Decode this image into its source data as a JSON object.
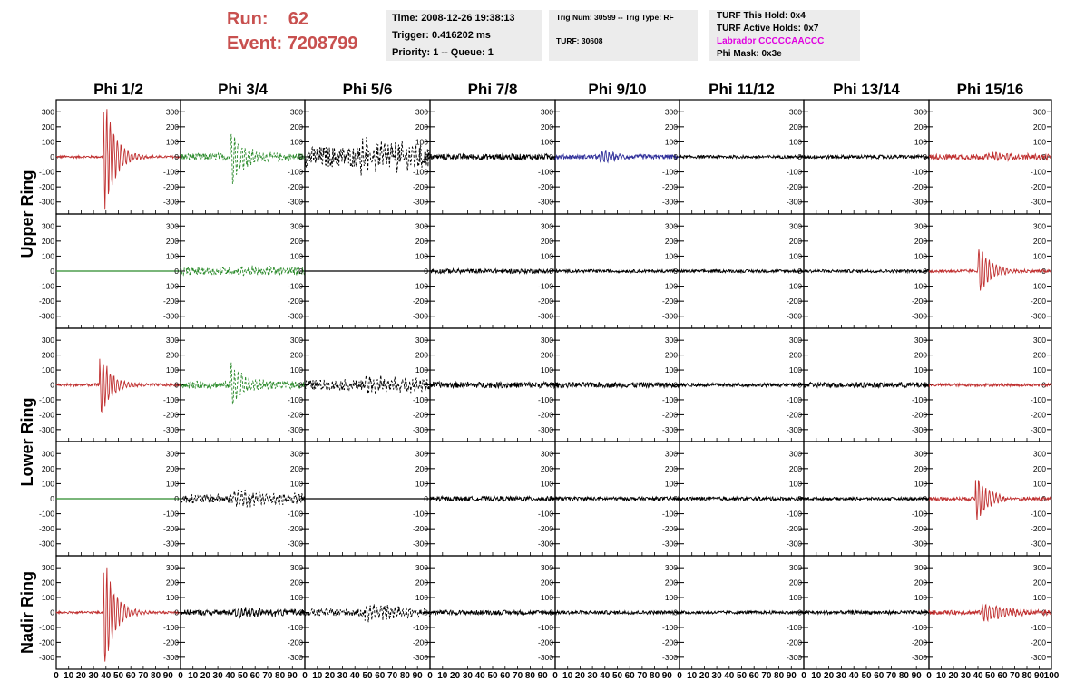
{
  "header": {
    "run_label": "Run:",
    "run_value": "62",
    "event_label": "Event:",
    "event_value": "7208799",
    "time_line": "Time: 2008-12-26 19:38:13",
    "trigger_line": "Trigger: 0.416202 ms",
    "priority_line": "Priority: 1 -- Queue: 1",
    "trig_num_line": "Trig Num: 30599 -- Trig Type: RF",
    "turf_line": "TURF: 30608",
    "turf_hold_line": "TURF This Hold: 0x4",
    "turf_active_line": "TURF Active Holds: 0x7",
    "labrador_line": "Labrador CCCCCAACCC",
    "phi_mask_line": "Phi Mask: 0x3e"
  },
  "colors": {
    "accent_title": "#c8504f",
    "red": "#c03030",
    "green": "#2a8a2a",
    "blue": "#30309a",
    "black": "#000000",
    "labrador": "#e000e0"
  },
  "chart_data": {
    "type": "line",
    "columns": [
      "Phi 1/2",
      "Phi 3/4",
      "Phi 5/6",
      "Phi 7/8",
      "Phi 9/10",
      "Phi 11/12",
      "Phi 13/14",
      "Phi 15/16"
    ],
    "row_labels": [
      "Upper Ring",
      "Lower Ring",
      "Nadir Ring"
    ],
    "row_label_spans": [
      [
        0,
        1
      ],
      [
        2,
        3
      ],
      [
        4,
        4
      ]
    ],
    "xlim": [
      0,
      100
    ],
    "ylim": [
      -380,
      380
    ],
    "yticks": [
      -300,
      -200,
      -100,
      0,
      100,
      200,
      300
    ],
    "xtick_labels": [
      "0",
      "10",
      "20",
      "30",
      "40",
      "50",
      "60",
      "70",
      "80",
      "90",
      "100"
    ],
    "panels": [
      [
        {
          "color": "red",
          "style": "solid",
          "amp": 8,
          "peak": 360,
          "center": 40,
          "decay": 8
        },
        {
          "color": "green",
          "style": "dashed",
          "amp": 25,
          "peak": 160,
          "center": 42,
          "decay": 10
        },
        {
          "color": "black",
          "style": "dashed",
          "amp": 70,
          "peak": 80,
          "center": 45,
          "decay": 40
        },
        {
          "color": "black",
          "style": "solid",
          "amp": 20,
          "peak": 0,
          "center": 50,
          "decay": 10
        },
        {
          "color": "blue",
          "style": "solid",
          "amp": 15,
          "peak": 45,
          "center": 38,
          "decay": 10
        },
        {
          "color": "black",
          "style": "solid",
          "amp": 10,
          "peak": 0,
          "center": 50,
          "decay": 10
        },
        {
          "color": "black",
          "style": "solid",
          "amp": 12,
          "peak": 0,
          "center": 50,
          "decay": 10
        },
        {
          "color": "red",
          "style": "solid",
          "amp": 18,
          "peak": 20,
          "center": 50,
          "decay": 20
        }
      ],
      [
        {
          "color": "green",
          "style": "flat",
          "amp": 0,
          "peak": 0,
          "center": 50,
          "decay": 10
        },
        {
          "color": "green",
          "style": "dashed",
          "amp": 25,
          "peak": 20,
          "center": 50,
          "decay": 30
        },
        {
          "color": "black",
          "style": "flat",
          "amp": 0,
          "peak": 0,
          "center": 50,
          "decay": 10
        },
        {
          "color": "black",
          "style": "solid",
          "amp": 15,
          "peak": 0,
          "center": 50,
          "decay": 10
        },
        {
          "color": "black",
          "style": "solid",
          "amp": 10,
          "peak": 0,
          "center": 50,
          "decay": 10
        },
        {
          "color": "black",
          "style": "solid",
          "amp": 10,
          "peak": 0,
          "center": 50,
          "decay": 10
        },
        {
          "color": "black",
          "style": "solid",
          "amp": 10,
          "peak": 0,
          "center": 50,
          "decay": 10
        },
        {
          "color": "red",
          "style": "solid",
          "amp": 10,
          "peak": 150,
          "center": 42,
          "decay": 9
        }
      ],
      [
        {
          "color": "red",
          "style": "solid",
          "amp": 10,
          "peak": 190,
          "center": 37,
          "decay": 8
        },
        {
          "color": "green",
          "style": "dashed",
          "amp": 25,
          "peak": 130,
          "center": 42,
          "decay": 10
        },
        {
          "color": "black",
          "style": "dashed",
          "amp": 35,
          "peak": 50,
          "center": 50,
          "decay": 40
        },
        {
          "color": "black",
          "style": "solid",
          "amp": 20,
          "peak": 0,
          "center": 50,
          "decay": 10
        },
        {
          "color": "black",
          "style": "solid",
          "amp": 18,
          "peak": 0,
          "center": 50,
          "decay": 10
        },
        {
          "color": "black",
          "style": "solid",
          "amp": 12,
          "peak": 0,
          "center": 50,
          "decay": 10
        },
        {
          "color": "black",
          "style": "solid",
          "amp": 18,
          "peak": 0,
          "center": 50,
          "decay": 10
        },
        {
          "color": "red",
          "style": "solid",
          "amp": 10,
          "peak": 0,
          "center": 50,
          "decay": 10
        }
      ],
      [
        {
          "color": "green",
          "style": "flat",
          "amp": 0,
          "peak": 0,
          "center": 50,
          "decay": 10
        },
        {
          "color": "black",
          "style": "dashed",
          "amp": 30,
          "peak": 45,
          "center": 45,
          "decay": 35
        },
        {
          "color": "black",
          "style": "flat",
          "amp": 0,
          "peak": 0,
          "center": 50,
          "decay": 10
        },
        {
          "color": "black",
          "style": "solid",
          "amp": 15,
          "peak": 0,
          "center": 50,
          "decay": 10
        },
        {
          "color": "black",
          "style": "solid",
          "amp": 12,
          "peak": 0,
          "center": 50,
          "decay": 10
        },
        {
          "color": "black",
          "style": "solid",
          "amp": 12,
          "peak": 0,
          "center": 50,
          "decay": 10
        },
        {
          "color": "black",
          "style": "solid",
          "amp": 10,
          "peak": 0,
          "center": 50,
          "decay": 10
        },
        {
          "color": "red",
          "style": "solid",
          "amp": 12,
          "peak": 140,
          "center": 40,
          "decay": 9
        }
      ],
      [
        {
          "color": "red",
          "style": "solid",
          "amp": 8,
          "peak": 330,
          "center": 40,
          "decay": 8
        },
        {
          "color": "black",
          "style": "solid",
          "amp": 18,
          "peak": 30,
          "center": 45,
          "decay": 30
        },
        {
          "color": "black",
          "style": "dashed",
          "amp": 25,
          "peak": 50,
          "center": 50,
          "decay": 30
        },
        {
          "color": "black",
          "style": "solid",
          "amp": 15,
          "peak": 0,
          "center": 50,
          "decay": 10
        },
        {
          "color": "black",
          "style": "solid",
          "amp": 12,
          "peak": 0,
          "center": 50,
          "decay": 10
        },
        {
          "color": "black",
          "style": "solid",
          "amp": 10,
          "peak": 0,
          "center": 50,
          "decay": 10
        },
        {
          "color": "black",
          "style": "solid",
          "amp": 12,
          "peak": 0,
          "center": 50,
          "decay": 10
        },
        {
          "color": "red",
          "style": "solid",
          "amp": 14,
          "peak": 60,
          "center": 45,
          "decay": 20
        }
      ]
    ]
  }
}
